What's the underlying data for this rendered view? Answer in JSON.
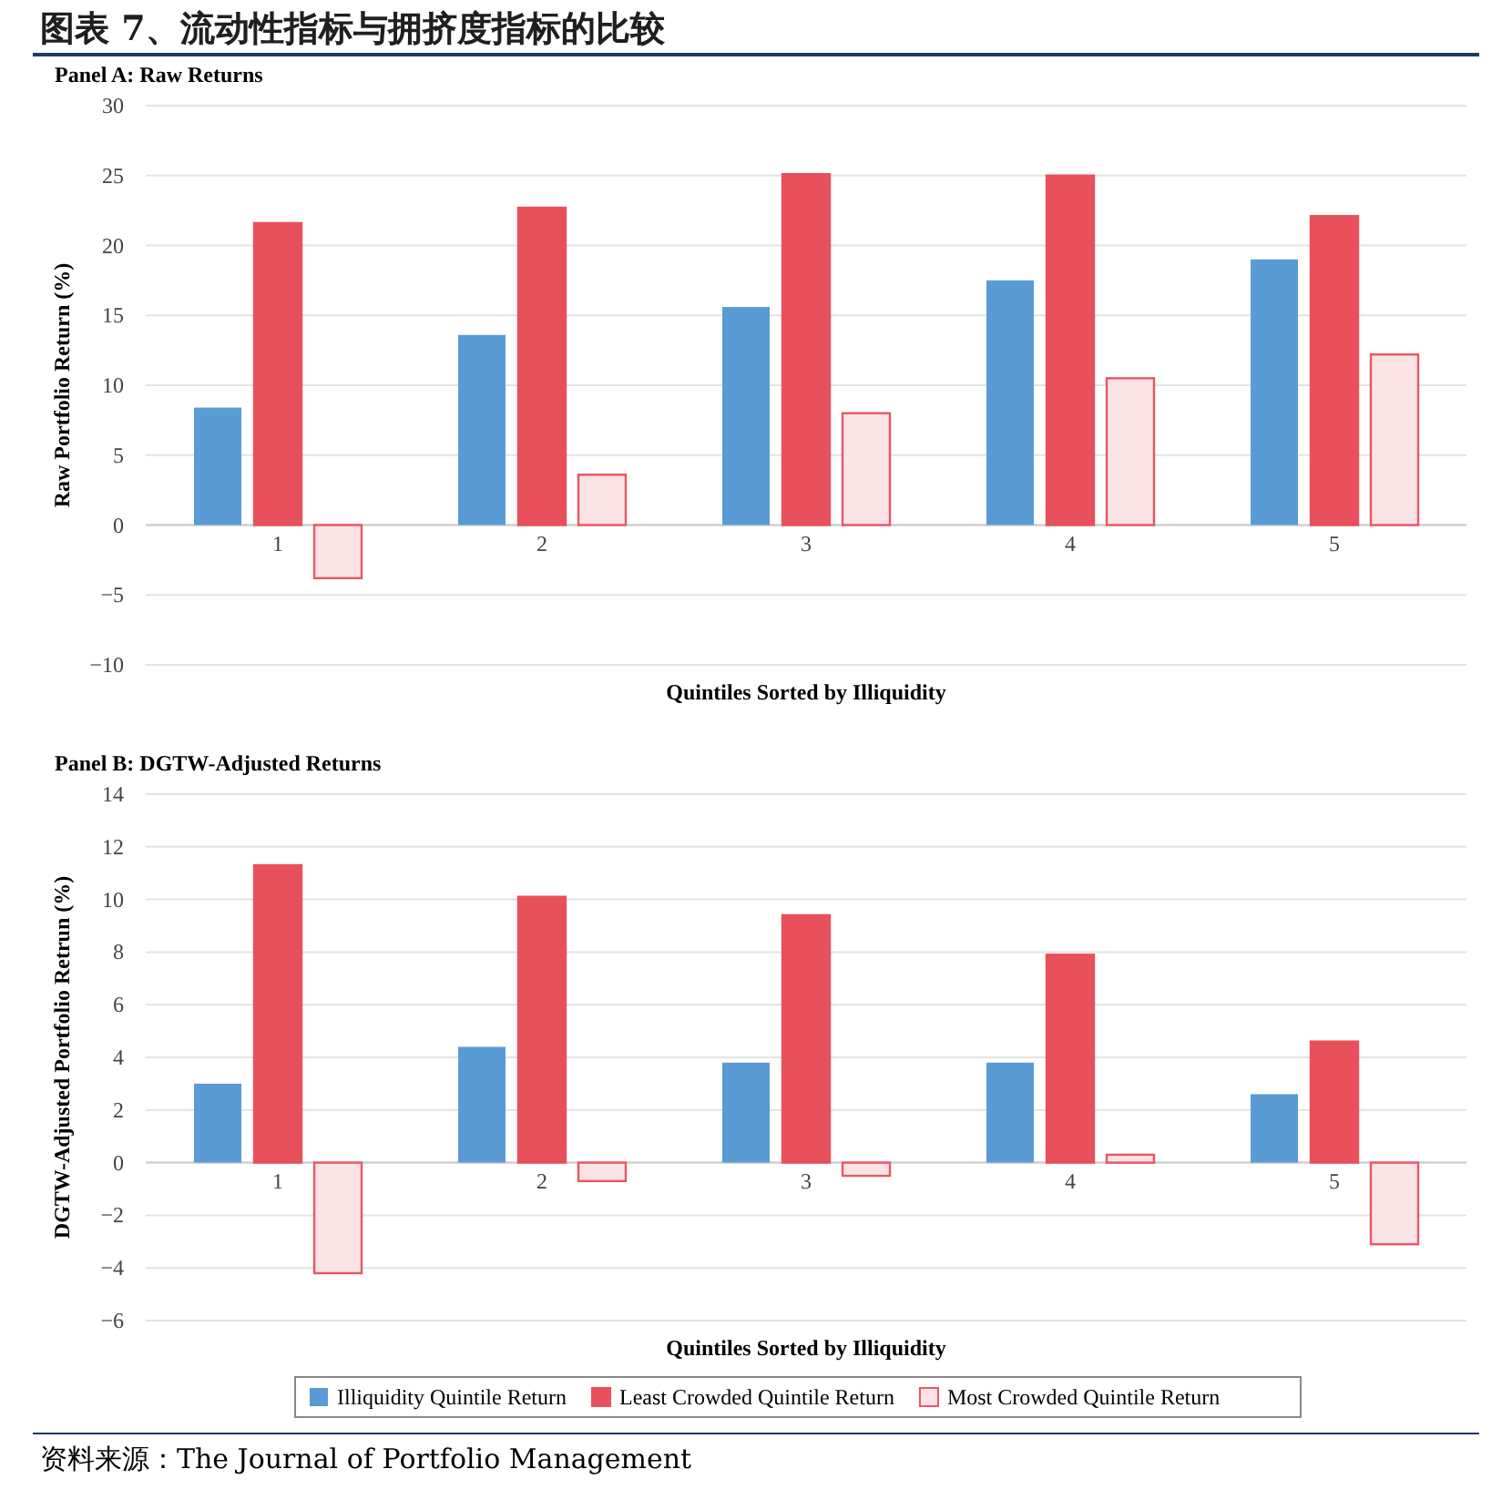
{
  "chart_data": [
    {
      "type": "bar",
      "title": "图表 7、流动性指标与拥挤度指标的比较",
      "subtitle": "Panel A: Raw Returns",
      "xlabel": "Quintiles Sorted by Illiquidity",
      "ylabel": "Raw Portfolio Return (%)",
      "categories": [
        "1",
        "2",
        "3",
        "4",
        "5"
      ],
      "series": [
        {
          "color": "#5b9bd5",
          "values": [
            8.4,
            13.6,
            15.6,
            17.5,
            19.0
          ]
        },
        {
          "color": "#e8505b",
          "values": [
            21.6,
            22.7,
            25.1,
            25.0,
            22.1
          ]
        },
        {
          "color": "#fbe3e5",
          "values": [
            -3.8,
            3.6,
            8.0,
            10.5,
            12.2
          ]
        }
      ],
      "ylim": [
        -10,
        30
      ],
      "yticks": [
        -10,
        -5,
        0,
        5,
        10,
        15,
        20,
        25,
        30
      ],
      "grid": "y"
    },
    {
      "type": "bar",
      "title": "Panel B: DGTW-Adjusted Returns",
      "xlabel": "Quintiles Sorted by Illiquidity",
      "ylabel": "DGTW-Adjusted Portfolio Retrun (%)",
      "categories": [
        "1",
        "2",
        "3",
        "4",
        "5"
      ],
      "series": [
        {
          "name": "Illiquidity Quintile Return",
          "color": "#5b9bd5",
          "values": [
            3.0,
            4.4,
            3.8,
            3.8,
            2.6
          ]
        },
        {
          "name": "Least Crowded Quintile Return",
          "color": "#e8505b",
          "values": [
            11.3,
            10.1,
            9.4,
            7.9,
            4.6
          ]
        },
        {
          "name": "Most Crowded Quintile Return",
          "color": "#fbe3e5",
          "values": [
            -4.2,
            -0.7,
            -0.5,
            0.3,
            -3.1
          ]
        }
      ],
      "ylim": [
        -6,
        14
      ],
      "yticks": [
        -6,
        -4,
        -2,
        0,
        2,
        4,
        6,
        8,
        10,
        12,
        14
      ],
      "grid": "y",
      "legend": "bottom",
      "annotations": [
        "资料来源：The Journal of Portfolio Management"
      ]
    }
  ]
}
